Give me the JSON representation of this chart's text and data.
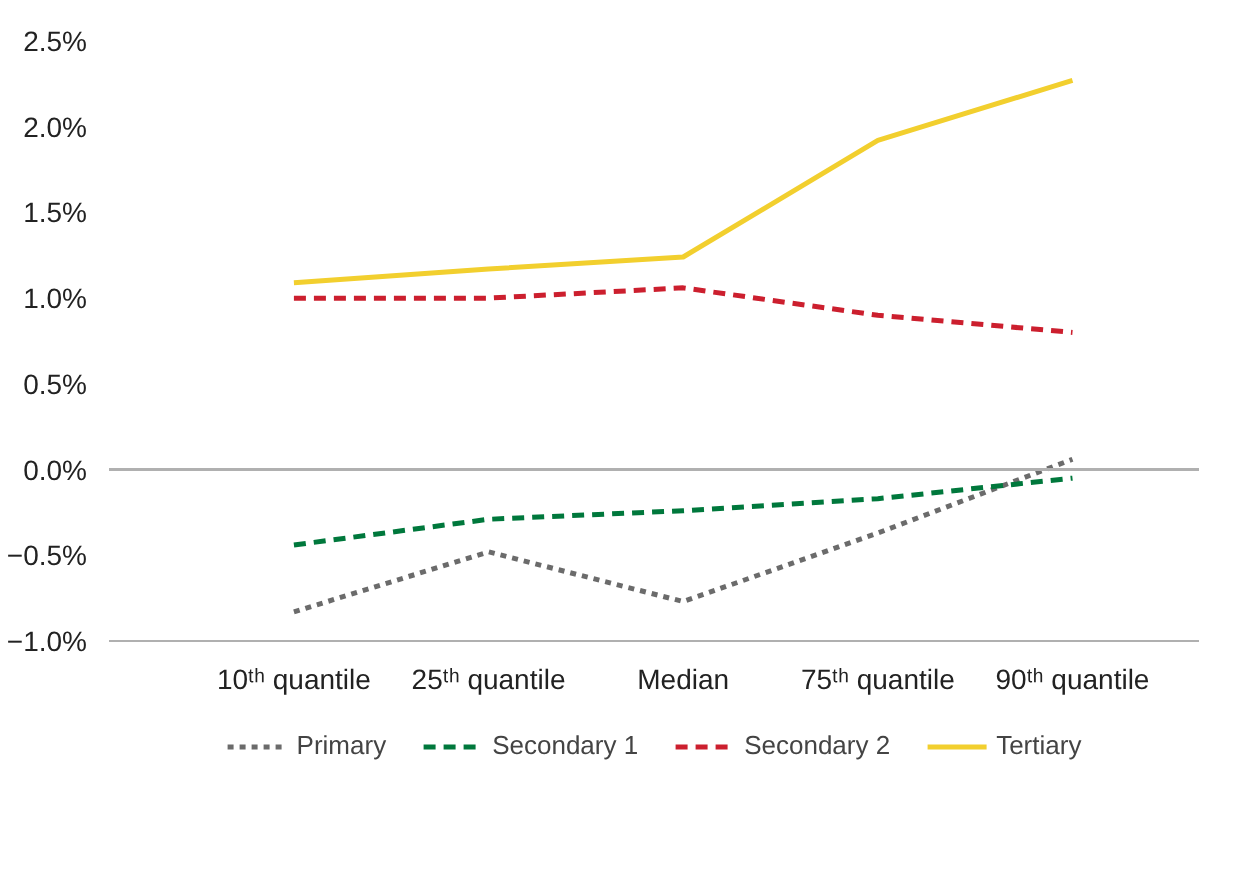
{
  "chart_data": {
    "type": "line",
    "categories": [
      "10ᵗʰ quantile",
      "25ᵗʰ quantile",
      "Median",
      "75ᵗʰ quantile",
      "90ᵗʰ quantile"
    ],
    "series": [
      {
        "name": "Primary",
        "color": "#6b6b6b",
        "line_style": "dotted",
        "values": [
          -0.83,
          -0.48,
          -0.77,
          -0.37,
          0.06
        ]
      },
      {
        "name": "Secondary 1",
        "color": "#00783c",
        "line_style": "dashed",
        "values": [
          -0.44,
          -0.29,
          -0.24,
          -0.17,
          -0.05
        ]
      },
      {
        "name": "Secondary 2",
        "color": "#cc1f2e",
        "line_style": "dashed",
        "values": [
          1.0,
          1.0,
          1.06,
          0.9,
          0.8
        ]
      },
      {
        "name": "Tertiary",
        "color": "#f2cf2e",
        "line_style": "solid",
        "values": [
          1.09,
          1.17,
          1.24,
          1.92,
          2.27
        ]
      }
    ],
    "ylim": [
      -1.0,
      2.5
    ],
    "yticks": [
      {
        "value": -1.0,
        "label": "−1.0%"
      },
      {
        "value": -0.5,
        "label": "−0.5%"
      },
      {
        "value": 0.0,
        "label": "0.0%"
      },
      {
        "value": 0.5,
        "label": "0.5%"
      },
      {
        "value": 1.0,
        "label": "1.0%"
      },
      {
        "value": 1.5,
        "label": "1.5%"
      },
      {
        "value": 2.0,
        "label": "2.0%"
      },
      {
        "value": 2.5,
        "label": "2.5%"
      }
    ],
    "ref_lines": [
      {
        "axis": "y",
        "value": 0.0,
        "color": "#b0b0b0"
      }
    ],
    "grid": false,
    "legend": "bottom",
    "marker": "none"
  }
}
